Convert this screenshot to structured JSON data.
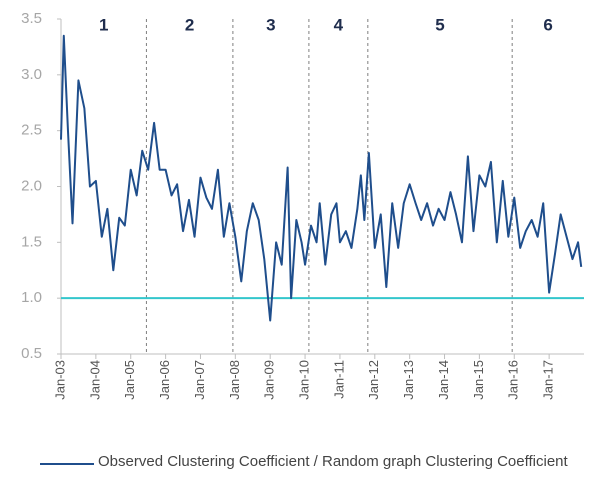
{
  "chart_data": {
    "type": "line",
    "x": [
      2003.0,
      2003.08,
      2003.2,
      2003.33,
      2003.5,
      2003.67,
      2003.83,
      2004.0,
      2004.17,
      2004.33,
      2004.5,
      2004.67,
      2004.83,
      2005.0,
      2005.17,
      2005.33,
      2005.5,
      2005.67,
      2005.83,
      2006.0,
      2006.17,
      2006.33,
      2006.5,
      2006.67,
      2006.83,
      2007.0,
      2007.17,
      2007.33,
      2007.5,
      2007.67,
      2007.83,
      2008.0,
      2008.17,
      2008.33,
      2008.5,
      2008.67,
      2008.83,
      2009.0,
      2009.17,
      2009.33,
      2009.5,
      2009.6,
      2009.75,
      2009.9,
      2010.0,
      2010.17,
      2010.33,
      2010.42,
      2010.58,
      2010.75,
      2010.9,
      2011.0,
      2011.17,
      2011.33,
      2011.5,
      2011.6,
      2011.7,
      2011.83,
      2012.0,
      2012.17,
      2012.33,
      2012.5,
      2012.67,
      2012.83,
      2013.0,
      2013.17,
      2013.33,
      2013.5,
      2013.67,
      2013.83,
      2014.0,
      2014.17,
      2014.33,
      2014.5,
      2014.67,
      2014.83,
      2015.0,
      2015.17,
      2015.33,
      2015.5,
      2015.67,
      2015.83,
      2016.0,
      2016.17,
      2016.33,
      2016.5,
      2016.67,
      2016.83,
      2017.0,
      2017.17,
      2017.33,
      2017.5,
      2017.67,
      2017.83,
      2017.92
    ],
    "series": [
      {
        "name": "Observed Clustering Coefficient / Random graph Clustering Coefficient",
        "color": "#1f4e8c",
        "values": [
          2.42,
          3.35,
          2.5,
          1.67,
          2.95,
          2.7,
          2.0,
          2.05,
          1.55,
          1.8,
          1.25,
          1.72,
          1.65,
          2.15,
          1.92,
          2.32,
          2.15,
          2.57,
          2.15,
          2.15,
          1.92,
          2.02,
          1.6,
          1.88,
          1.55,
          2.08,
          1.9,
          1.8,
          2.15,
          1.55,
          1.85,
          1.55,
          1.15,
          1.6,
          1.85,
          1.7,
          1.35,
          0.8,
          1.5,
          1.3,
          2.17,
          1.0,
          1.7,
          1.5,
          1.3,
          1.65,
          1.5,
          1.85,
          1.3,
          1.75,
          1.85,
          1.5,
          1.6,
          1.45,
          1.8,
          2.1,
          1.7,
          2.3,
          1.45,
          1.75,
          1.1,
          1.85,
          1.45,
          1.85,
          2.02,
          1.85,
          1.7,
          1.85,
          1.65,
          1.8,
          1.7,
          1.95,
          1.75,
          1.5,
          2.27,
          1.6,
          2.1,
          2.0,
          2.22,
          1.5,
          2.05,
          1.55,
          1.9,
          1.45,
          1.6,
          1.7,
          1.55,
          1.85,
          1.05,
          1.4,
          1.75,
          1.55,
          1.35,
          1.5,
          1.28
        ]
      }
    ],
    "xlim": [
      2003,
      2018
    ],
    "xticks": [
      {
        "value": 2003,
        "label": "Jan-03"
      },
      {
        "value": 2004,
        "label": "Jan-04"
      },
      {
        "value": 2005,
        "label": "Jan-05"
      },
      {
        "value": 2006,
        "label": "Jan-06"
      },
      {
        "value": 2007,
        "label": "Jan-07"
      },
      {
        "value": 2008,
        "label": "Jan-08"
      },
      {
        "value": 2009,
        "label": "Jan-09"
      },
      {
        "value": 2010,
        "label": "Jan-10"
      },
      {
        "value": 2011,
        "label": "Jan-11"
      },
      {
        "value": 2012,
        "label": "Jan-12"
      },
      {
        "value": 2013,
        "label": "Jan-13"
      },
      {
        "value": 2014,
        "label": "Jan-14"
      },
      {
        "value": 2015,
        "label": "Jan-15"
      },
      {
        "value": 2016,
        "label": "Jan-16"
      },
      {
        "value": 2017,
        "label": "Jan-17"
      }
    ],
    "ylim": [
      0.5,
      3.5
    ],
    "yticks": [
      0.5,
      {
        "value": 1,
        "label": "1.0"
      },
      1.5,
      {
        "value": 2,
        "label": "2.0"
      },
      2.5,
      {
        "value": 3,
        "label": "3.0"
      },
      3.5
    ],
    "reference_line": {
      "value": 1,
      "color": "#33c6cc"
    },
    "period_labels": [
      "1",
      "2",
      "3",
      "4",
      "5",
      "6"
    ],
    "period_boundaries": [
      2005.45,
      2007.93,
      2010.11,
      2011.8,
      2015.94
    ]
  }
}
